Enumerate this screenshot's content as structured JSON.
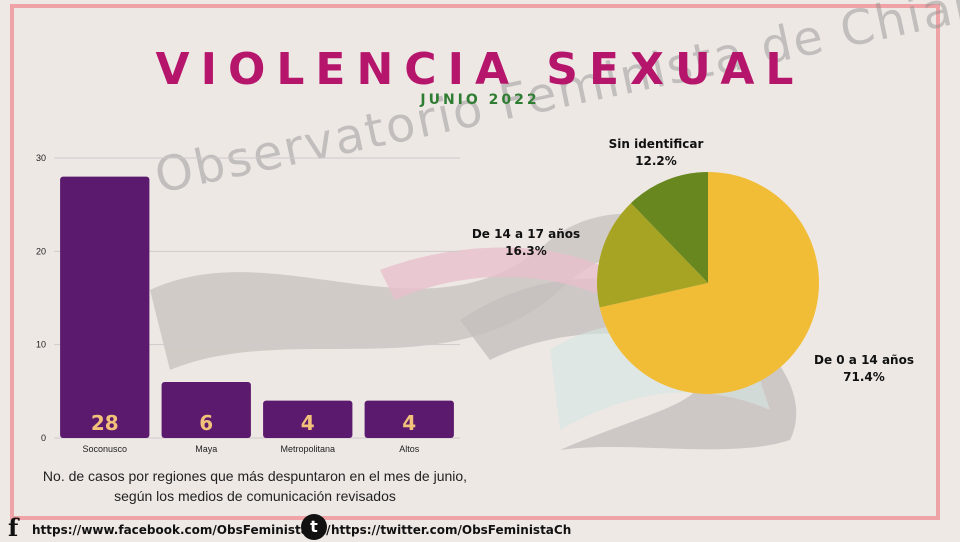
{
  "header": {
    "title": "VIOLENCIA SEXUAL",
    "subtitle": "JUNIO 2022"
  },
  "watermark": {
    "text": "Observatorio Feminista de Chiapas"
  },
  "chart_data": [
    {
      "type": "bar",
      "categories": [
        "Soconusco",
        "Maya",
        "Metropolitana",
        "Altos"
      ],
      "values": [
        28,
        6,
        4,
        4
      ],
      "data_labels": [
        "28",
        "6",
        "4",
        "4"
      ],
      "yticks": [
        0,
        10,
        20,
        30
      ],
      "ylim": [
        0,
        30
      ],
      "grid": true,
      "bar_color": "#5c1a6e",
      "label_color": "#f2c27a",
      "caption_lines": [
        "No. de casos por regiones que más despuntaron en el mes de junio,",
        "según los medios de comunicación revisados"
      ]
    },
    {
      "type": "pie",
      "slices": [
        {
          "label": "De 0 a 14 años",
          "percent_label": "71.4%",
          "value": 71.4,
          "color": "#f2bd36"
        },
        {
          "label": "De 14 a 17 años",
          "percent_label": "16.3%",
          "value": 16.3,
          "color": "#a8a423"
        },
        {
          "label": "Sin identificar",
          "percent_label": "12.2%",
          "value": 12.2,
          "color": "#68881f"
        }
      ]
    }
  ],
  "footer": {
    "facebook_icon": "f",
    "facebook_url": "https://www.facebook.com/ObsFeministaCh/",
    "twitter_icon": "t",
    "twitter_url": "https://twitter.com/ObsFeministaCh"
  }
}
